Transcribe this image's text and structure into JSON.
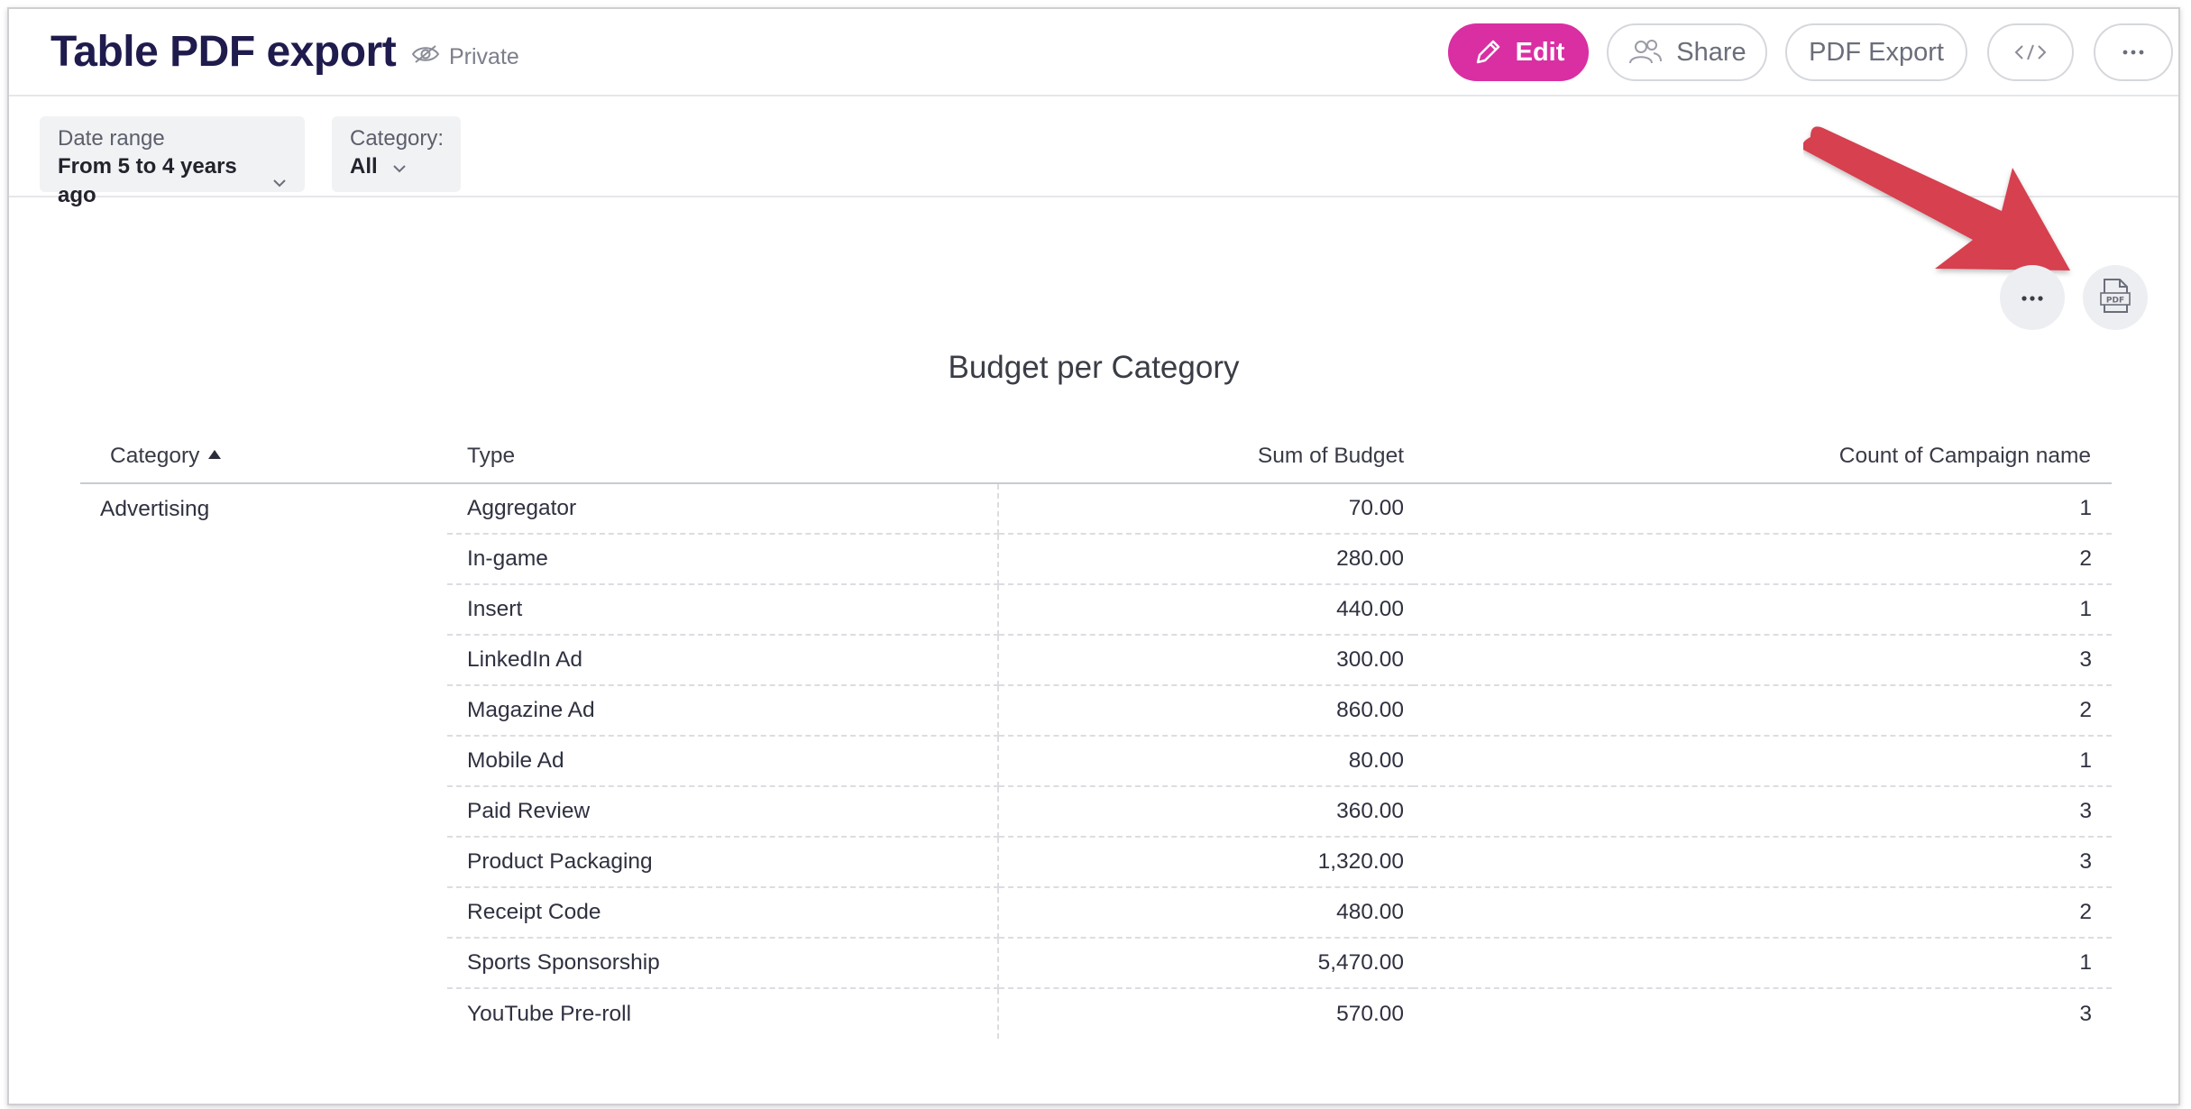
{
  "header": {
    "title": "Table PDF export",
    "visibility": "Private",
    "buttons": {
      "edit": "Edit",
      "share": "Share",
      "pdf_export": "PDF Export",
      "embed_icon": "code-icon",
      "more_icon": "ellipsis-icon"
    },
    "accent_color": "#d92fa3"
  },
  "filters": [
    {
      "label": "Date range",
      "value": "From 5 to 4 years ago"
    },
    {
      "label": "Category:",
      "value": "All"
    }
  ],
  "widget": {
    "title": "Budget per Category",
    "actions": [
      "ellipsis-icon",
      "pdf-icon"
    ],
    "columns": [
      "Category",
      "Type",
      "Sum of Budget",
      "Count of Campaign name"
    ],
    "sorted_column": "Category",
    "sort_direction": "ascending",
    "group": "Advertising",
    "rows": [
      {
        "type": "Aggregator",
        "sum": "70.00",
        "count": "1"
      },
      {
        "type": "In-game",
        "sum": "280.00",
        "count": "2"
      },
      {
        "type": "Insert",
        "sum": "440.00",
        "count": "1"
      },
      {
        "type": "LinkedIn Ad",
        "sum": "300.00",
        "count": "3"
      },
      {
        "type": "Magazine Ad",
        "sum": "860.00",
        "count": "2"
      },
      {
        "type": "Mobile Ad",
        "sum": "80.00",
        "count": "1"
      },
      {
        "type": "Paid Review",
        "sum": "360.00",
        "count": "3"
      },
      {
        "type": "Product Packaging",
        "sum": "1,320.00",
        "count": "3"
      },
      {
        "type": "Receipt Code",
        "sum": "480.00",
        "count": "2"
      },
      {
        "type": "Sports Sponsorship",
        "sum": "5,470.00",
        "count": "1"
      },
      {
        "type": "YouTube Pre-roll",
        "sum": "570.00",
        "count": "3"
      }
    ]
  },
  "annotation_arrow_color": "#d6414f"
}
